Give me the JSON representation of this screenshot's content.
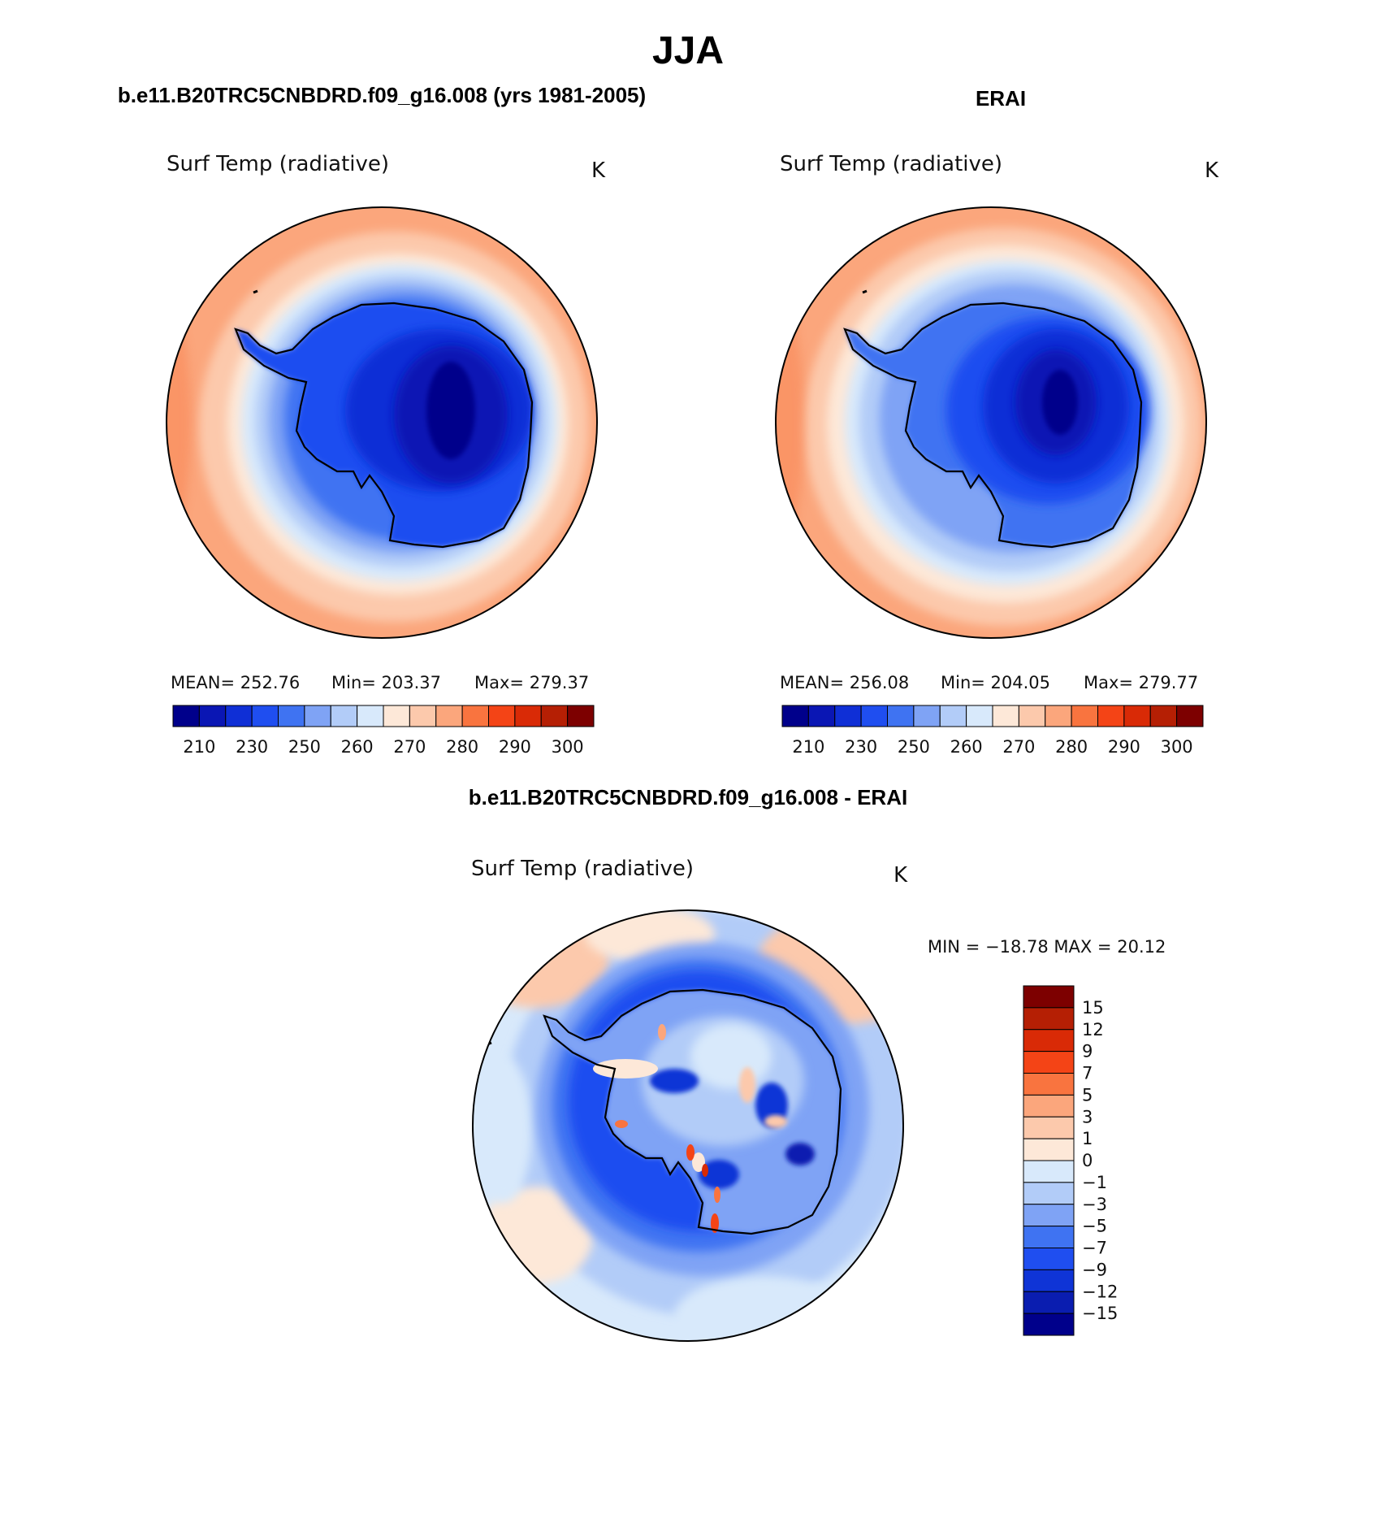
{
  "figure": {
    "title": "JJA",
    "variable": "Surf Temp (radiative)",
    "units": "K"
  },
  "palette": {
    "seq": [
      "#00008b",
      "#0a16b4",
      "#0f2fd6",
      "#1f4ef0",
      "#3f73f2",
      "#7fa3f5",
      "#b2ccf8",
      "#d8e9fb",
      "#fde8d8",
      "#fcc9ac",
      "#fba67c",
      "#f9743f",
      "#f44416",
      "#d92a06",
      "#b51f04",
      "#7d0000"
    ],
    "div": [
      "#00008b",
      "#0a1db0",
      "#0f34d6",
      "#1f4ef0",
      "#3f73f2",
      "#7fa3f5",
      "#b2ccf8",
      "#d8e9fb",
      "#fde8d8",
      "#fcc9ac",
      "#fba67c",
      "#f9743f",
      "#f44416",
      "#d92a06",
      "#b51f04",
      "#7d0000"
    ]
  },
  "chart_data": [
    {
      "type": "heatmap",
      "subtitle": "b.e11.B20TRC5CNBDRD.f09_g16.008 (yrs 1981-2005)",
      "title": "Surf Temp (radiative)",
      "units": "K",
      "projection": "south polar stereographic",
      "stats": {
        "mean": "252.76",
        "min": "203.37",
        "max": "279.37"
      },
      "stats_labels": {
        "mean": "MEAN=",
        "min": "Min=",
        "max": "Max="
      },
      "colorbar_ticks": [
        "210",
        "230",
        "250",
        "260",
        "270",
        "280",
        "290",
        "300"
      ],
      "field": {
        "antarctic_core": 208,
        "coast": 245,
        "ocean_ring": 262,
        "rim": 278
      }
    },
    {
      "type": "heatmap",
      "subtitle": "ERAI",
      "title": "Surf Temp (radiative)",
      "units": "K",
      "projection": "south polar stereographic",
      "stats": {
        "mean": "256.08",
        "min": "204.05",
        "max": "279.77"
      },
      "stats_labels": {
        "mean": "MEAN=",
        "min": "Min=",
        "max": "Max="
      },
      "colorbar_ticks": [
        "210",
        "230",
        "250",
        "260",
        "270",
        "280",
        "290",
        "300"
      ],
      "field": {
        "antarctic_core": 210,
        "coast": 250,
        "ocean_ring": 265,
        "rim": 278
      }
    },
    {
      "type": "heatmap",
      "subtitle": "b.e11.B20TRC5CNBDRD.f09_g16.008 - ERAI",
      "title": "Surf Temp (radiative)",
      "units": "K",
      "projection": "south polar stereographic",
      "stats": {
        "min": "−18.78",
        "max": "20.12"
      },
      "stats_labels": {
        "min": "MIN =",
        "max": "MAX ="
      },
      "colorbar_ticks": [
        "15",
        "12",
        "9",
        "7",
        "5",
        "3",
        "1",
        "0",
        "−1",
        "−3",
        "−5",
        "−7",
        "−9",
        "−12",
        "−15"
      ]
    }
  ]
}
